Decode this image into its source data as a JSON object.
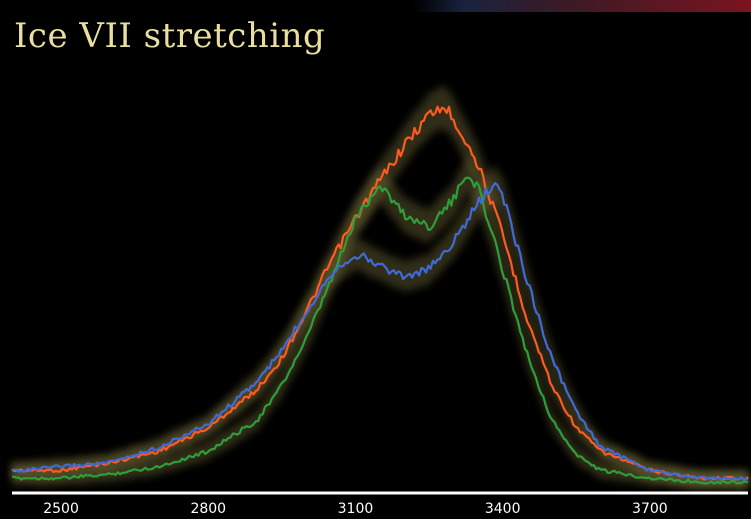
{
  "title": "Ice VII stretching",
  "chart_data": {
    "type": "line",
    "title": "Ice VII stretching",
    "xlabel": "",
    "ylabel": "",
    "xlim": [
      2400,
      3900
    ],
    "ylim": [
      0,
      1.0
    ],
    "x_ticks": [
      2500,
      2800,
      3100,
      3400,
      3700
    ],
    "grid": false,
    "legend": "none",
    "colors": {
      "band": "#6b6436",
      "axis": "#ffffff",
      "background": "#000000"
    },
    "series": [
      {
        "color": "#ff5a1f",
        "x": [
          2420,
          2500,
          2600,
          2700,
          2800,
          2900,
          2950,
          3000,
          3050,
          3100,
          3150,
          3200,
          3250,
          3280,
          3300,
          3350,
          3400,
          3450,
          3500,
          3550,
          3600,
          3700,
          3800,
          3900
        ],
        "y": [
          0.03,
          0.03,
          0.05,
          0.08,
          0.14,
          0.24,
          0.32,
          0.44,
          0.57,
          0.68,
          0.78,
          0.87,
          0.95,
          0.97,
          0.94,
          0.82,
          0.64,
          0.42,
          0.25,
          0.14,
          0.08,
          0.03,
          0.01,
          0.01
        ]
      },
      {
        "color": "#2e9e3a",
        "x": [
          2420,
          2500,
          2600,
          2700,
          2800,
          2900,
          2950,
          3000,
          3050,
          3100,
          3150,
          3200,
          3250,
          3300,
          3330,
          3350,
          3400,
          3450,
          3500,
          3550,
          3600,
          3700,
          3800,
          3900
        ],
        "y": [
          0.01,
          0.01,
          0.02,
          0.04,
          0.08,
          0.16,
          0.25,
          0.37,
          0.52,
          0.68,
          0.77,
          0.69,
          0.66,
          0.73,
          0.8,
          0.76,
          0.55,
          0.33,
          0.16,
          0.07,
          0.03,
          0.01,
          0.0,
          0.0
        ]
      },
      {
        "color": "#3f6ad8",
        "x": [
          2420,
          2500,
          2600,
          2700,
          2800,
          2900,
          2950,
          3000,
          3050,
          3100,
          3150,
          3200,
          3250,
          3300,
          3350,
          3380,
          3400,
          3450,
          3500,
          3550,
          3600,
          3700,
          3800,
          3900
        ],
        "y": [
          0.03,
          0.04,
          0.05,
          0.09,
          0.15,
          0.26,
          0.34,
          0.44,
          0.54,
          0.59,
          0.56,
          0.53,
          0.55,
          0.62,
          0.72,
          0.77,
          0.74,
          0.52,
          0.32,
          0.18,
          0.09,
          0.03,
          0.01,
          0.01
        ]
      }
    ]
  }
}
